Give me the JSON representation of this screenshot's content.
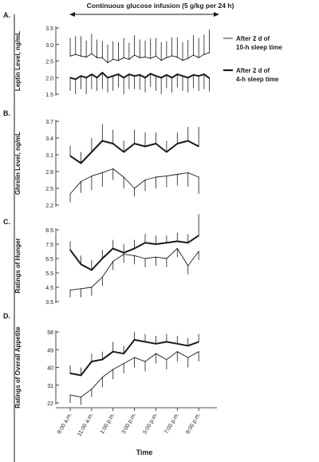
{
  "header": {
    "title": "Continuous glucose infusion (5 g/kg per 24 h)"
  },
  "xaxis": {
    "label": "Time",
    "ticks": [
      "9:00 a.m.",
      "11:00 a.m.",
      "1:00 p.m.",
      "3:00 p.m.",
      "5:00 p.m.",
      "7:00 p.m.",
      "9:00 p.m."
    ],
    "tick_hours": [
      9,
      11,
      13,
      15,
      17,
      19,
      21
    ]
  },
  "legend": {
    "items": [
      {
        "line1": "After 2 d of",
        "line2": "10-h sleep time",
        "style": "thin"
      },
      {
        "line1": "After 2 d of",
        "line2": "4-h sleep time",
        "style": "thick"
      }
    ]
  },
  "colors": {
    "line": "#1a1a1a",
    "background": "#ffffff"
  },
  "chart_data": [
    {
      "type": "line",
      "panel_letter": "A.",
      "title": "",
      "ylabel": "Leptin Level, ng/mL",
      "yticks": [
        "3.5",
        "3.0",
        "2.5",
        "2.0",
        "1.5"
      ],
      "ylim": [
        1.5,
        3.5
      ],
      "xlim": [
        8.7,
        22.7
      ],
      "series": [
        {
          "name": "After 2 d of 10-h sleep time",
          "style": "thin",
          "error_dir": "up",
          "x": [
            9,
            9.5,
            10,
            10.5,
            11,
            11.5,
            12,
            12.5,
            13,
            13.5,
            14,
            14.5,
            15,
            15.5,
            16,
            16.5,
            17,
            17.5,
            18,
            18.5,
            19,
            19.5,
            20,
            20.5,
            21,
            21.5,
            22
          ],
          "y": [
            2.65,
            2.7,
            2.65,
            2.62,
            2.72,
            2.6,
            2.6,
            2.45,
            2.55,
            2.52,
            2.6,
            2.55,
            2.68,
            2.6,
            2.62,
            2.58,
            2.65,
            2.52,
            2.6,
            2.66,
            2.62,
            2.52,
            2.58,
            2.68,
            2.6,
            2.7,
            2.75
          ],
          "error": [
            0.55,
            0.55,
            0.6,
            0.5,
            0.6,
            0.55,
            0.5,
            0.55,
            0.55,
            0.55,
            0.6,
            0.5,
            0.6,
            0.55,
            0.5,
            0.6,
            0.55,
            0.55,
            0.5,
            0.55,
            0.6,
            0.55,
            0.55,
            0.6,
            0.6,
            0.6,
            0.7
          ]
        },
        {
          "name": "After 2 d of 4-h sleep time",
          "style": "thick",
          "error_dir": "down",
          "x": [
            9,
            9.5,
            10,
            10.5,
            11,
            11.5,
            12,
            12.5,
            13,
            13.5,
            14,
            14.5,
            15,
            15.5,
            16,
            16.5,
            17,
            17.5,
            18,
            18.5,
            19,
            19.5,
            20,
            20.5,
            21,
            21.5,
            22
          ],
          "y": [
            2.0,
            1.95,
            2.05,
            2.0,
            2.1,
            2.0,
            2.15,
            2.0,
            2.05,
            2.1,
            2.0,
            2.1,
            2.05,
            2.08,
            2.0,
            2.12,
            2.05,
            2.0,
            2.08,
            2.0,
            2.1,
            2.05,
            2.0,
            2.08,
            2.05,
            2.1,
            1.98
          ],
          "error": [
            0.4,
            0.45,
            0.4,
            0.5,
            0.45,
            0.4,
            0.5,
            0.45,
            0.45,
            0.4,
            0.5,
            0.45,
            0.4,
            0.45,
            0.45,
            0.4,
            0.45,
            0.5,
            0.4,
            0.45,
            0.4,
            0.45,
            0.45,
            0.4,
            0.45,
            0.45,
            0.4
          ]
        }
      ]
    },
    {
      "type": "line",
      "panel_letter": "B.",
      "title": "",
      "ylabel": "Ghrelin Level, ng/mL",
      "yticks": [
        "3.7",
        "3.4",
        "3.1",
        "2.8",
        "2.5",
        "2.2"
      ],
      "ylim": [
        2.2,
        3.7
      ],
      "xlim": [
        8.7,
        22.7
      ],
      "series": [
        {
          "name": "After 2 d of 4-h sleep time",
          "style": "thick",
          "error_dir": "up",
          "x": [
            9,
            10,
            11,
            12,
            13,
            14,
            15,
            16,
            17,
            18,
            19,
            20,
            21
          ],
          "y": [
            3.08,
            2.95,
            3.15,
            3.35,
            3.3,
            3.15,
            3.3,
            3.25,
            3.3,
            3.15,
            3.3,
            3.35,
            3.25
          ],
          "error": [
            0.18,
            0.2,
            0.25,
            0.3,
            0.25,
            0.2,
            0.25,
            0.25,
            0.2,
            0.2,
            0.2,
            0.25,
            0.35
          ]
        },
        {
          "name": "After 2 d of 10-h sleep time",
          "style": "thin",
          "error_dir": "down",
          "x": [
            9,
            10,
            11,
            12,
            13,
            14,
            15,
            16,
            17,
            18,
            19,
            20,
            21
          ],
          "y": [
            2.4,
            2.62,
            2.72,
            2.78,
            2.85,
            2.7,
            2.5,
            2.65,
            2.7,
            2.72,
            2.75,
            2.78,
            2.7
          ],
          "error": [
            0.15,
            0.2,
            0.25,
            0.25,
            0.2,
            0.2,
            0.15,
            0.2,
            0.2,
            0.2,
            0.2,
            0.25,
            0.3
          ]
        }
      ]
    },
    {
      "type": "line",
      "panel_letter": "C.",
      "title": "",
      "ylabel": "Ratings of Hunger",
      "yticks": [
        "8.5",
        "7.5",
        "6.5",
        "5.5",
        "4.5",
        "3.5"
      ],
      "ylim": [
        3.5,
        8.5
      ],
      "xlim": [
        8.7,
        22.7
      ],
      "series": [
        {
          "name": "After 2 d of 4-h sleep time",
          "style": "thick",
          "error_dir": "up",
          "x": [
            9,
            10,
            11,
            12,
            13,
            14,
            15,
            16,
            17,
            18,
            19,
            20,
            21
          ],
          "y": [
            7.1,
            6.1,
            5.7,
            6.5,
            7.2,
            6.9,
            7.2,
            7.6,
            7.5,
            7.6,
            7.7,
            7.6,
            8.1
          ],
          "error": [
            0.6,
            0.6,
            0.7,
            0.6,
            0.6,
            0.6,
            0.6,
            0.6,
            0.6,
            0.5,
            0.6,
            0.6,
            1.5
          ]
        },
        {
          "name": "After 2 d of 10-h sleep time",
          "style": "thin",
          "error_dir": "down",
          "x": [
            9,
            10,
            11,
            12,
            13,
            14,
            15,
            16,
            17,
            18,
            19,
            20,
            21
          ],
          "y": [
            4.3,
            4.4,
            4.5,
            5.2,
            6.3,
            6.8,
            6.7,
            6.5,
            6.6,
            6.5,
            7.2,
            6.0,
            7.0
          ],
          "error": [
            0.5,
            0.6,
            0.6,
            0.6,
            0.6,
            0.6,
            0.6,
            0.6,
            0.6,
            0.6,
            0.6,
            0.6,
            0.6
          ]
        }
      ]
    },
    {
      "type": "line",
      "panel_letter": "D.",
      "title": "",
      "ylabel": "Ratings of Overall Appetite",
      "yticks": [
        "58",
        "49",
        "40",
        "31",
        "22"
      ],
      "ylim": [
        22,
        58
      ],
      "xlim": [
        8.7,
        22.7
      ],
      "series": [
        {
          "name": "After 2 d of 4-h sleep time",
          "style": "thick",
          "error_dir": "up",
          "x": [
            9,
            10,
            11,
            12,
            13,
            14,
            15,
            16,
            17,
            18,
            19,
            20,
            21
          ],
          "y": [
            37,
            36,
            43,
            44,
            48,
            47,
            54,
            53,
            52,
            53,
            52,
            51,
            53
          ],
          "error": [
            4,
            4,
            4,
            4,
            5,
            4,
            4,
            4,
            4,
            4,
            4,
            4,
            4
          ]
        },
        {
          "name": "After 2 d of 10-h sleep time",
          "style": "thin",
          "error_dir": "down",
          "x": [
            9,
            10,
            11,
            12,
            13,
            14,
            15,
            16,
            17,
            18,
            19,
            20,
            21
          ],
          "y": [
            26,
            25,
            29,
            35,
            39,
            42,
            45,
            43,
            47,
            44,
            48,
            45,
            48
          ],
          "error": [
            4,
            4,
            4,
            5,
            5,
            5,
            5,
            5,
            5,
            5,
            5,
            5,
            5
          ]
        }
      ]
    }
  ]
}
